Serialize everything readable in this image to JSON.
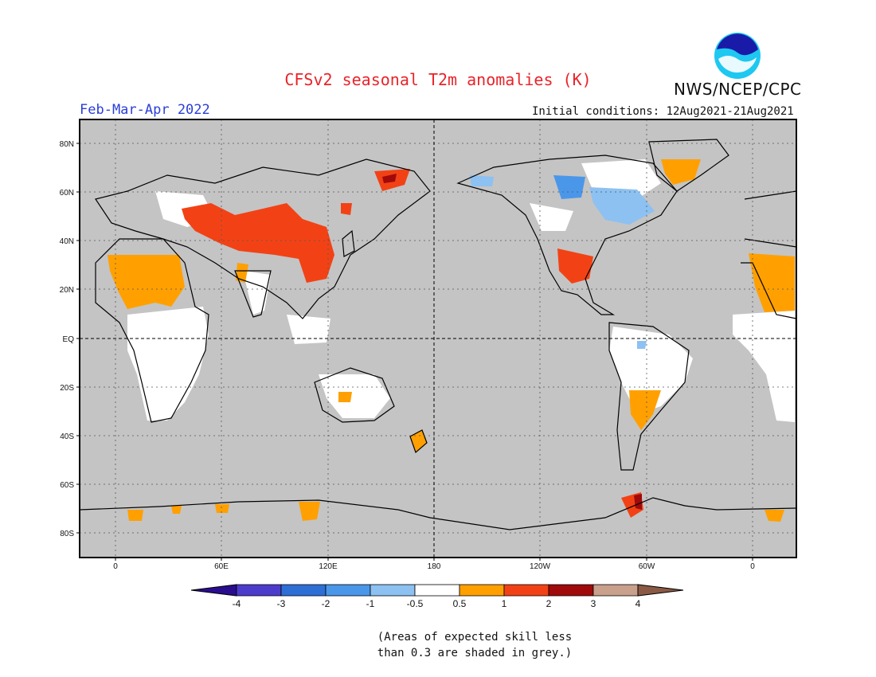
{
  "title": "CFSv2 seasonal T2m anomalies (K)",
  "agency": "NWS/NCEP/CPC",
  "logo_text": "NOAA",
  "season": "Feb-Mar-Apr 2022",
  "initial_conditions": "Initial conditions: 12Aug2021-21Aug2021",
  "lat_labels": [
    "80N",
    "60N",
    "40N",
    "20N",
    "EQ",
    "20S",
    "40S",
    "60S",
    "80S"
  ],
  "lon_labels": [
    "0",
    "60E",
    "120E",
    "180",
    "120W",
    "60W",
    "0"
  ],
  "colorbar": {
    "labels": [
      "-4",
      "-3",
      "-2",
      "-1",
      "-0.5",
      "0.5",
      "1",
      "2",
      "3",
      "4"
    ],
    "colors": [
      "#2a0d8f",
      "#4c3ccc",
      "#2e6fd6",
      "#4a97ea",
      "#8cc1f2",
      "#ffffff",
      "#ffa000",
      "#f24215",
      "#a00a0a",
      "#c8a08c",
      "#8a5a45"
    ]
  },
  "footnote": [
    "(Areas of expected skill less",
    "than 0.3 are shaded in grey.)"
  ],
  "map_colors": {
    "grey": "#c4c4c4",
    "white": "#ffffff",
    "orange": "#ffa000",
    "red": "#f24215",
    "darkred": "#a00a0a",
    "lightblue": "#8cc1f2",
    "blue": "#4a97ea",
    "coast": "#000000"
  }
}
